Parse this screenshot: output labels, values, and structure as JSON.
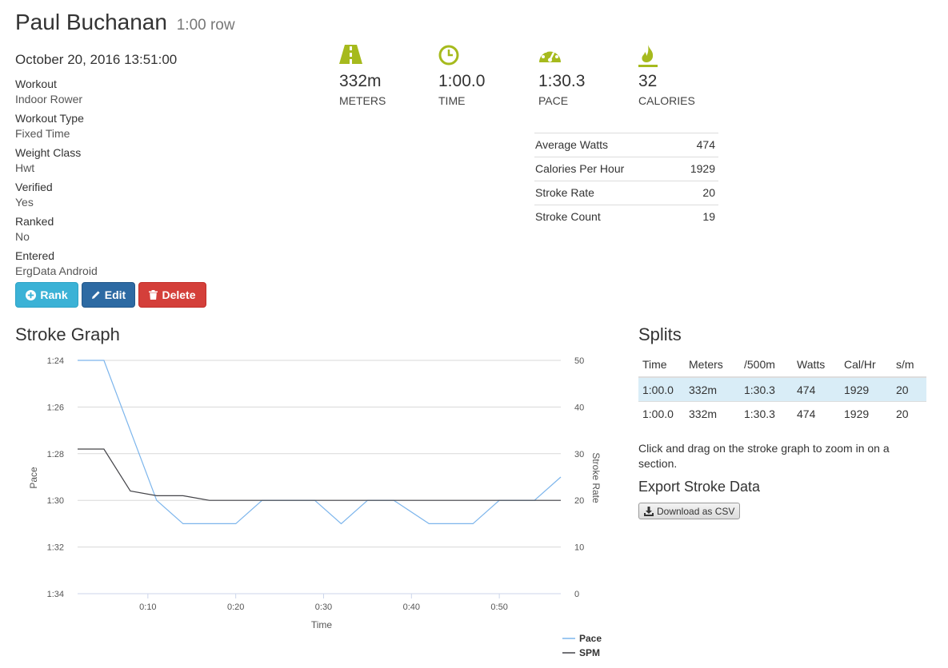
{
  "header": {
    "name": "Paul Buchanan",
    "subtitle": "1:00 row"
  },
  "date": "October 20, 2016 13:51:00",
  "details": [
    {
      "term": "Workout",
      "value": "Indoor Rower"
    },
    {
      "term": "Workout Type",
      "value": "Fixed Time"
    },
    {
      "term": "Weight Class",
      "value": "Hwt"
    },
    {
      "term": "Verified",
      "value": "Yes"
    },
    {
      "term": "Ranked",
      "value": "No"
    },
    {
      "term": "Entered",
      "value": "ErgData Android"
    }
  ],
  "buttons": {
    "rank": "Rank",
    "edit": "Edit",
    "delete": "Delete"
  },
  "stats": [
    {
      "value": "332m",
      "label": "METERS",
      "icon": "road-icon"
    },
    {
      "value": "1:00.0",
      "label": "TIME",
      "icon": "clock-icon"
    },
    {
      "value": "1:30.3",
      "label": "PACE",
      "icon": "dashboard-icon"
    },
    {
      "value": "32",
      "label": "CALORIES",
      "icon": "flame-icon"
    }
  ],
  "metrics": [
    {
      "label": "Average Watts",
      "value": "474"
    },
    {
      "label": "Calories Per Hour",
      "value": "1929"
    },
    {
      "label": "Stroke Rate",
      "value": "20"
    },
    {
      "label": "Stroke Count",
      "value": "19"
    }
  ],
  "stroke_graph": {
    "title": "Stroke Graph"
  },
  "splits": {
    "title": "Splits",
    "headers": [
      "Time",
      "Meters",
      "/500m",
      "Watts",
      "Cal/Hr",
      "s/m"
    ],
    "rows": [
      [
        "1:00.0",
        "332m",
        "1:30.3",
        "474",
        "1929",
        "20"
      ],
      [
        "1:00.0",
        "332m",
        "1:30.3",
        "474",
        "1929",
        "20"
      ]
    ]
  },
  "note": "Click and drag on the stroke graph to zoom in on a section.",
  "export": {
    "title": "Export Stroke Data",
    "button": "Download as CSV"
  },
  "colors": {
    "accent": "#a6ba1d",
    "pace": "#7cb5ec",
    "spm": "#434348"
  },
  "chart_data": {
    "type": "line",
    "xlabel": "Time",
    "ylabel_left": "Pace",
    "ylabel_right": "Stroke Rate",
    "x_ticks": [
      "0:10",
      "0:20",
      "0:30",
      "0:40",
      "0:50"
    ],
    "y_left_ticks": [
      "1:24",
      "1:26",
      "1:28",
      "1:30",
      "1:32",
      "1:34"
    ],
    "y_right_ticks": [
      "50",
      "40",
      "30",
      "20",
      "10",
      "0"
    ],
    "x_range_seconds": [
      2,
      57
    ],
    "y_left_range_seconds": [
      84,
      94
    ],
    "y_left_reversed": true,
    "y_right_range": [
      0,
      50
    ],
    "series": [
      {
        "name": "Pace",
        "axis": "left",
        "x": [
          2,
          5,
          11,
          14,
          20,
          23,
          29,
          32,
          35,
          38,
          42,
          47,
          50,
          54,
          57
        ],
        "y": [
          84,
          84,
          90,
          91,
          91,
          90,
          90,
          91,
          90,
          90,
          91,
          91,
          90,
          90,
          89
        ]
      },
      {
        "name": "SPM",
        "axis": "right",
        "x": [
          2,
          5,
          8,
          11,
          14,
          17,
          20,
          23,
          26,
          29,
          32,
          35,
          38,
          41,
          44,
          47,
          50,
          53,
          56,
          57
        ],
        "y": [
          31,
          31,
          22,
          21,
          21,
          20,
          20,
          20,
          20,
          20,
          20,
          20,
          20,
          20,
          20,
          20,
          20,
          20,
          20,
          20
        ]
      }
    ]
  }
}
